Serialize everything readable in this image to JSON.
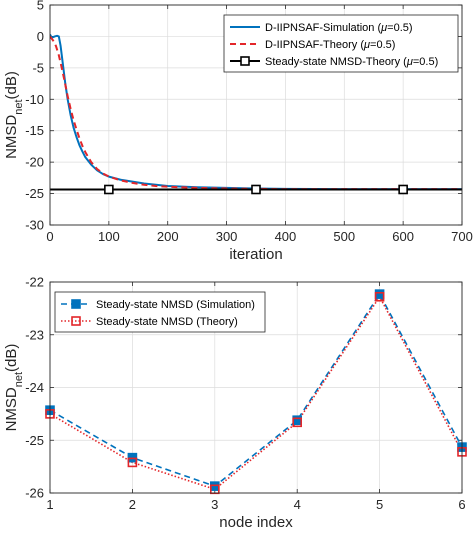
{
  "colors": {
    "simulation": "#0072BD",
    "theory": "#E3262A",
    "steady": "#000000",
    "axis": "#262626",
    "grid": "#dcdcdc"
  },
  "chart_data": [
    {
      "type": "line",
      "xlabel": "iteration",
      "ylabel_main": "NMSD",
      "ylabel_sub": "net",
      "ylabel_unit": "(dB)",
      "xlim": [
        0,
        700
      ],
      "ylim": [
        -30,
        5
      ],
      "xticks": [
        0,
        100,
        200,
        300,
        400,
        500,
        600,
        700
      ],
      "yticks": [
        5,
        0,
        -5,
        -10,
        -15,
        -20,
        -25,
        -30
      ],
      "grid": true,
      "legend_position": "top-right",
      "legend": [
        {
          "pre": "D-IIPNSAF-Simulation (",
          "post": "=0.5)"
        },
        {
          "pre": "D-IIPNSAF-Theory (",
          "post": "=0.5)"
        },
        {
          "pre": "Steady-state NMSD-Theory (",
          "post": "=0.5)"
        }
      ],
      "mu_symbol": "μ",
      "series": [
        {
          "style": "solid",
          "x": [
            0,
            3,
            8,
            12,
            15,
            18,
            22,
            26,
            30,
            35,
            40,
            45,
            50,
            55,
            60,
            70,
            80,
            90,
            100,
            120,
            140,
            160,
            180,
            200,
            250,
            300,
            350,
            400,
            500,
            600,
            700
          ],
          "y": [
            0.3,
            -0.2,
            0,
            0.1,
            0,
            -1.5,
            -4.5,
            -7.5,
            -10,
            -12.5,
            -14.5,
            -16,
            -17.3,
            -18.3,
            -19.2,
            -20.4,
            -21.3,
            -21.9,
            -22.3,
            -22.8,
            -23.1,
            -23.4,
            -23.6,
            -23.8,
            -24.0,
            -24.1,
            -24.2,
            -24.25,
            -24.3,
            -24.3,
            -24.3
          ]
        },
        {
          "style": "dashed",
          "x": [
            0,
            5,
            10,
            15,
            20,
            25,
            30,
            35,
            40,
            45,
            50,
            55,
            60,
            70,
            80,
            90,
            100,
            120,
            140,
            160,
            180,
            200,
            250,
            300,
            350,
            400,
            500,
            600,
            700
          ],
          "y": [
            0,
            -0.6,
            -1.5,
            -3,
            -5,
            -7.2,
            -9.5,
            -11.5,
            -13.3,
            -14.8,
            -16.2,
            -17.4,
            -18.4,
            -20,
            -21.1,
            -21.8,
            -22.3,
            -22.9,
            -23.3,
            -23.6,
            -23.8,
            -23.9,
            -24.1,
            -24.2,
            -24.25,
            -24.3,
            -24.3,
            -24.3,
            -24.3
          ]
        },
        {
          "style": "solid-square",
          "x": [
            0,
            700
          ],
          "y": [
            -24.35,
            -24.35
          ],
          "marker_x": [
            100,
            350,
            600
          ]
        }
      ]
    },
    {
      "type": "line",
      "xlabel": "node index",
      "ylabel_main": "NMSD",
      "ylabel_sub": "net",
      "ylabel_unit": "(dB)",
      "xlim": [
        1,
        6
      ],
      "ylim": [
        -26,
        -22
      ],
      "xticks": [
        1,
        2,
        3,
        4,
        5,
        6
      ],
      "yticks": [
        -22,
        -23,
        -24,
        -25,
        -26
      ],
      "grid": true,
      "legend_position": "top-left",
      "legend": [
        {
          "pre": "Steady-state NMSD (Simulation)",
          "post": ""
        },
        {
          "pre": "Steady-state NMSD (Theory)",
          "post": ""
        }
      ],
      "categories": [
        1,
        2,
        3,
        4,
        5,
        6
      ],
      "series": [
        {
          "style": "dashed-filled-square",
          "values": [
            -24.43,
            -25.33,
            -25.87,
            -24.62,
            -22.23,
            -25.13
          ]
        },
        {
          "style": "dotted-open-square",
          "values": [
            -24.5,
            -25.42,
            -25.93,
            -24.66,
            -22.28,
            -25.22
          ]
        }
      ]
    }
  ]
}
